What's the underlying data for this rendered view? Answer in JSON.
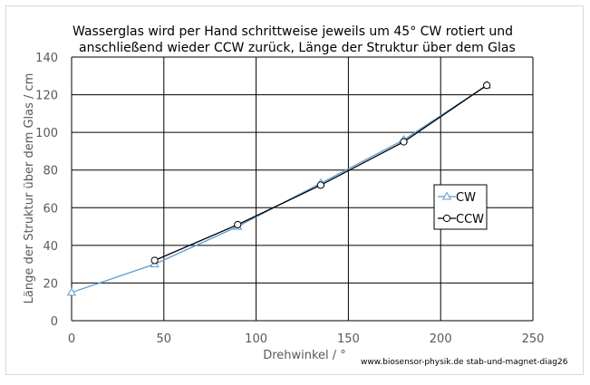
{
  "chart_data": {
    "type": "line",
    "title_lines": [
      "Wasserglas wird per Hand schrittweise jeweils um 45° CW rotiert und",
      "anschließend wieder CCW zurück, Länge der Struktur über dem Glas"
    ],
    "xlabel": "Drehwinkel / °",
    "ylabel": "Länge der Struktur über dem Glas / cm",
    "xlim": [
      0,
      250
    ],
    "ylim": [
      0,
      140
    ],
    "xticks": [
      0,
      50,
      100,
      150,
      200,
      250
    ],
    "yticks": [
      0,
      20,
      40,
      60,
      80,
      100,
      120,
      140
    ],
    "grid": true,
    "legend_position": "right",
    "series": [
      {
        "name": "CW",
        "marker": "triangle",
        "color": "#5b9bd5",
        "points": [
          [
            0,
            15
          ],
          [
            45,
            30
          ],
          [
            90,
            50
          ],
          [
            135,
            73
          ],
          [
            180,
            96
          ],
          [
            225,
            125
          ]
        ]
      },
      {
        "name": "CCW",
        "marker": "circle",
        "color": "#000000",
        "points": [
          [
            45,
            32
          ],
          [
            90,
            51
          ],
          [
            135,
            72
          ],
          [
            180,
            95
          ],
          [
            225,
            125
          ]
        ]
      }
    ],
    "footer": "www.biosensor-physik.de  stab-und-magnet-diag26"
  }
}
